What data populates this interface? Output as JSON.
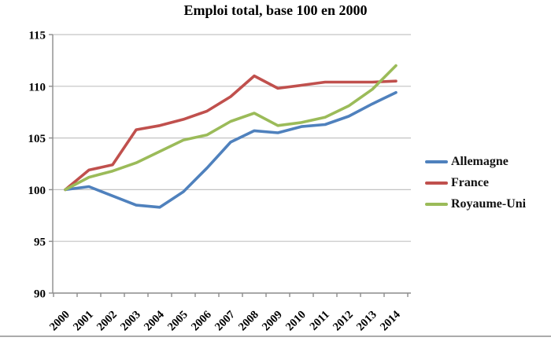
{
  "chart_data": {
    "type": "line",
    "title": "Emploi total, base 100 en 2000",
    "categories": [
      "2000",
      "2001",
      "2002",
      "2003",
      "2004",
      "2005",
      "2006",
      "2007",
      "2008",
      "2009",
      "2010",
      "2011",
      "2012",
      "2013",
      "2014"
    ],
    "series": [
      {
        "name": "Allemagne",
        "color": "#4F81BD",
        "values": [
          100,
          100.3,
          99.4,
          98.5,
          98.3,
          99.8,
          102.1,
          104.6,
          105.7,
          105.5,
          106.1,
          106.3,
          107.1,
          108.3,
          109.4
        ]
      },
      {
        "name": "France",
        "color": "#C0504D",
        "values": [
          100,
          101.9,
          102.4,
          105.8,
          106.2,
          106.8,
          107.6,
          109.0,
          111.0,
          109.8,
          110.1,
          110.4,
          110.4,
          110.4,
          110.5
        ]
      },
      {
        "name": "Royaume-Uni",
        "color": "#9BBB59",
        "values": [
          100,
          101.2,
          101.8,
          102.6,
          103.7,
          104.8,
          105.3,
          106.6,
          107.4,
          106.2,
          106.5,
          107.0,
          108.1,
          109.7,
          112.0
        ]
      }
    ],
    "ylim": [
      90,
      115
    ],
    "ytick_step": 5,
    "yticks": [
      "90",
      "95",
      "100",
      "105",
      "110",
      "115"
    ],
    "grid": true,
    "legend_position": "right",
    "xlabel": "",
    "ylabel": ""
  },
  "colors": {
    "gridline": "#C3C3C3",
    "axis": "#8C8C8C",
    "tick": "#8C8C8C",
    "label_text": "#000000",
    "bottom_rule": "#ABABAB"
  }
}
